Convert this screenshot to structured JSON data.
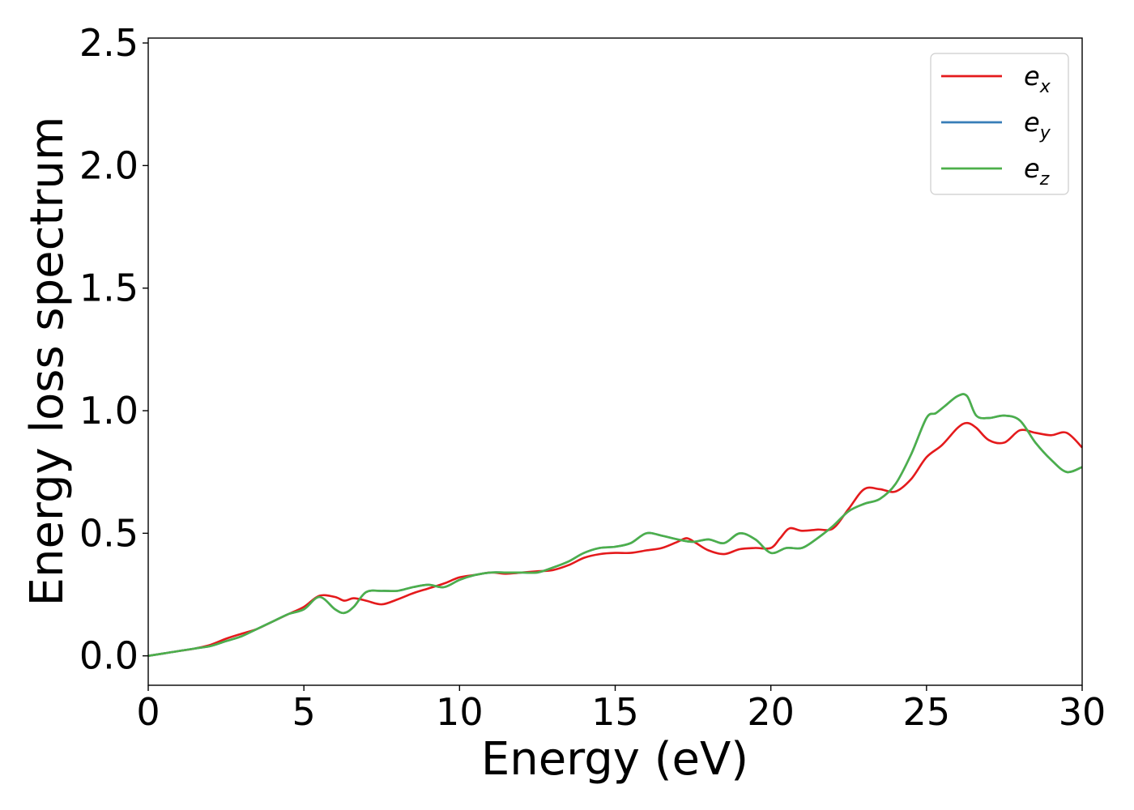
{
  "chart_data": {
    "type": "line",
    "title": "",
    "xlabel": "Energy (eV)",
    "ylabel": "Energy loss spectrum",
    "xlim": [
      0,
      30
    ],
    "ylim": [
      -0.12,
      2.52
    ],
    "xticks": [
      0,
      5,
      10,
      15,
      20,
      25,
      30
    ],
    "xtick_labels": [
      "0",
      "5",
      "10",
      "15",
      "20",
      "25",
      "30"
    ],
    "yticks": [
      0.0,
      0.5,
      1.0,
      1.5,
      2.0,
      2.5
    ],
    "ytick_labels": [
      "0.0",
      "0.5",
      "1.0",
      "1.5",
      "2.0",
      "2.5"
    ],
    "grid": false,
    "legend_position": "top-right",
    "series": [
      {
        "name": "e_x",
        "label_base": "e",
        "label_sub": "x",
        "color": "#e41a1c",
        "x": [
          0,
          0.5,
          1,
          1.5,
          2,
          2.5,
          3,
          3.5,
          4,
          4.5,
          5,
          5.5,
          6,
          6.3,
          6.6,
          7,
          7.5,
          8,
          8.5,
          9,
          9.5,
          10,
          10.5,
          11,
          11.5,
          12,
          12.5,
          13,
          13.5,
          14,
          14.5,
          15,
          15.5,
          16,
          16.5,
          17,
          17.3,
          17.6,
          18,
          18.5,
          19,
          19.5,
          20,
          20.3,
          20.6,
          21,
          21.5,
          22,
          22.5,
          23,
          23.5,
          24,
          24.5,
          25,
          25.5,
          26,
          26.3,
          26.6,
          27,
          27.5,
          28,
          28.5,
          29,
          29.5,
          30
        ],
        "y": [
          0.0,
          0.01,
          0.02,
          0.03,
          0.045,
          0.07,
          0.09,
          0.11,
          0.14,
          0.17,
          0.2,
          0.245,
          0.24,
          0.225,
          0.235,
          0.225,
          0.21,
          0.23,
          0.255,
          0.275,
          0.295,
          0.32,
          0.33,
          0.34,
          0.335,
          0.34,
          0.345,
          0.35,
          0.37,
          0.4,
          0.415,
          0.42,
          0.42,
          0.43,
          0.44,
          0.465,
          0.48,
          0.46,
          0.43,
          0.415,
          0.435,
          0.44,
          0.44,
          0.48,
          0.52,
          0.51,
          0.515,
          0.52,
          0.6,
          0.68,
          0.68,
          0.67,
          0.72,
          0.81,
          0.86,
          0.93,
          0.95,
          0.93,
          0.88,
          0.87,
          0.92,
          0.91,
          0.9,
          0.91,
          0.85
        ]
      },
      {
        "name": "e_y",
        "label_base": "e",
        "label_sub": "y",
        "color": "#377eb8",
        "x": [
          0,
          0.5,
          1,
          1.5,
          2,
          2.5,
          3,
          3.5,
          4,
          4.5,
          5,
          5.5,
          6,
          6.3,
          6.6,
          7,
          7.5,
          8,
          8.5,
          9,
          9.5,
          10,
          10.5,
          11,
          11.5,
          12,
          12.5,
          13,
          13.5,
          14,
          14.5,
          15,
          15.5,
          16,
          16.5,
          17,
          17.5,
          18,
          18.5,
          19,
          19.5,
          20,
          20.5,
          21,
          21.5,
          22,
          22.5,
          23,
          23.5,
          24,
          24.5,
          25,
          25.3,
          25.6,
          26,
          26.3,
          26.6,
          27,
          27.5,
          28,
          28.5,
          29,
          29.5,
          30
        ],
        "y": [
          0.0,
          0.01,
          0.02,
          0.03,
          0.04,
          0.06,
          0.08,
          0.11,
          0.14,
          0.17,
          0.19,
          0.24,
          0.19,
          0.175,
          0.2,
          0.26,
          0.265,
          0.265,
          0.28,
          0.29,
          0.28,
          0.31,
          0.33,
          0.34,
          0.34,
          0.34,
          0.34,
          0.36,
          0.385,
          0.42,
          0.44,
          0.445,
          0.46,
          0.5,
          0.49,
          0.475,
          0.465,
          0.475,
          0.46,
          0.5,
          0.475,
          0.42,
          0.44,
          0.44,
          0.48,
          0.53,
          0.59,
          0.62,
          0.64,
          0.7,
          0.82,
          0.97,
          0.99,
          1.02,
          1.06,
          1.06,
          0.98,
          0.97,
          0.98,
          0.96,
          0.87,
          0.8,
          0.75,
          0.77
        ]
      },
      {
        "name": "e_z",
        "label_base": "e",
        "label_sub": "z",
        "color": "#4daf4a",
        "x": [
          0,
          0.5,
          1,
          1.5,
          2,
          2.5,
          3,
          3.5,
          4,
          4.5,
          5,
          5.5,
          6,
          6.3,
          6.6,
          7,
          7.5,
          8,
          8.5,
          9,
          9.5,
          10,
          10.5,
          11,
          11.5,
          12,
          12.5,
          13,
          13.5,
          14,
          14.5,
          15,
          15.5,
          16,
          16.5,
          17,
          17.5,
          18,
          18.5,
          19,
          19.5,
          20,
          20.5,
          21,
          21.5,
          22,
          22.5,
          23,
          23.5,
          24,
          24.5,
          25,
          25.3,
          25.6,
          26,
          26.3,
          26.6,
          27,
          27.5,
          28,
          28.5,
          29,
          29.5,
          30
        ],
        "y": [
          0.0,
          0.01,
          0.02,
          0.03,
          0.04,
          0.06,
          0.08,
          0.11,
          0.14,
          0.17,
          0.19,
          0.24,
          0.19,
          0.175,
          0.2,
          0.26,
          0.265,
          0.265,
          0.28,
          0.29,
          0.28,
          0.31,
          0.33,
          0.34,
          0.34,
          0.34,
          0.34,
          0.36,
          0.385,
          0.42,
          0.44,
          0.445,
          0.46,
          0.5,
          0.49,
          0.475,
          0.465,
          0.475,
          0.46,
          0.5,
          0.475,
          0.42,
          0.44,
          0.44,
          0.48,
          0.53,
          0.59,
          0.62,
          0.64,
          0.7,
          0.82,
          0.97,
          0.99,
          1.02,
          1.06,
          1.06,
          0.98,
          0.97,
          0.98,
          0.96,
          0.87,
          0.8,
          0.75,
          0.77
        ]
      }
    ]
  }
}
